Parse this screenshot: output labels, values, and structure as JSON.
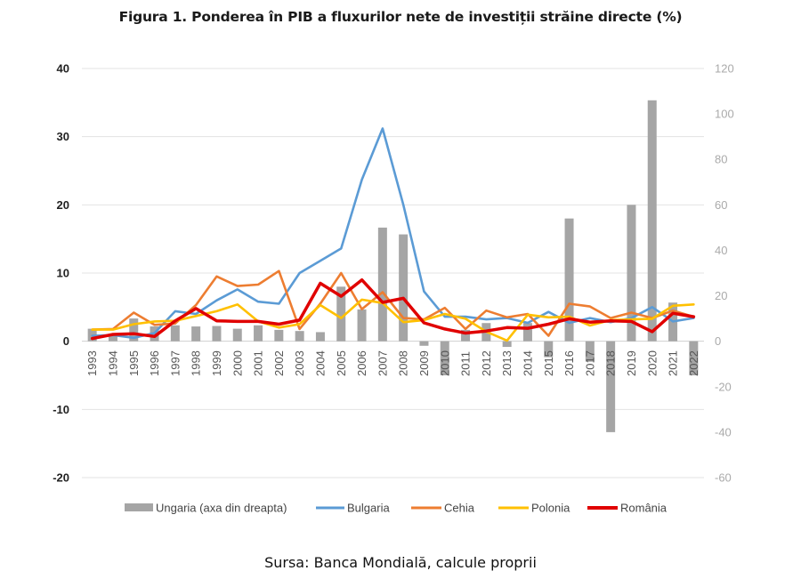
{
  "chart_data": {
    "type": "line",
    "title": "Figura 1. Ponderea în PIB a fluxurilor nete de investiții străine directe (%)",
    "source": "Sursa: Banca Mondială, calcule proprii",
    "xlabel": "",
    "ylabel": "",
    "grid": true,
    "legend_position": "bottom",
    "categories": [
      "1993",
      "1994",
      "1995",
      "1996",
      "1997",
      "1998",
      "1999",
      "2000",
      "2001",
      "2002",
      "2003",
      "2004",
      "2005",
      "2006",
      "2007",
      "2008",
      "2009",
      "2010",
      "2011",
      "2012",
      "2013",
      "2014",
      "2015",
      "2016",
      "2017",
      "2018",
      "2019",
      "2020",
      "2021",
      "2022"
    ],
    "y_left": {
      "range": [
        -20,
        40
      ],
      "ticks": [
        "40",
        "30",
        "20",
        "10",
        "0",
        "-10",
        "-20"
      ],
      "tick_values": [
        40,
        30,
        20,
        10,
        0,
        -10,
        -20
      ]
    },
    "y_right": {
      "range": [
        -60,
        120
      ],
      "ticks": [
        "120",
        "100",
        "80",
        "60",
        "40",
        "20",
        "0",
        "-20",
        "-40",
        "-60"
      ],
      "tick_values": [
        120,
        100,
        80,
        60,
        40,
        20,
        0,
        -20,
        -40,
        -60
      ]
    },
    "series": [
      {
        "name": "Ungaria (axa din dreapta)",
        "type": "bar",
        "axis": "right",
        "color": "#a5a5a5",
        "values": [
          5.5,
          2.5,
          10,
          6.5,
          7,
          6.5,
          6.7,
          5.5,
          7,
          5,
          4.5,
          4,
          24,
          14,
          50,
          47,
          -2,
          -15,
          5,
          8,
          -2.5,
          8,
          -7,
          54,
          -9,
          -40,
          60,
          106,
          17,
          -15
        ]
      },
      {
        "name": "Bulgaria",
        "type": "line",
        "axis": "left",
        "color": "#5b9bd5",
        "values": [
          0.8,
          0.9,
          0.5,
          1.2,
          4.4,
          4.0,
          6.0,
          7.6,
          5.8,
          5.5,
          10.0,
          11.8,
          13.6,
          23.7,
          31.2,
          20.0,
          7.3,
          3.6,
          3.6,
          3.2,
          3.4,
          2.7,
          4.3,
          2.7,
          3.4,
          2.8,
          3.4,
          5.0,
          2.9,
          3.4
        ]
      },
      {
        "name": "Cehia",
        "type": "line",
        "axis": "left",
        "color": "#ed7d31",
        "values": [
          1.7,
          1.8,
          4.2,
          2.4,
          2.6,
          5.3,
          9.5,
          8.1,
          8.3,
          10.3,
          1.8,
          5.5,
          10.0,
          4.7,
          7.2,
          3.4,
          3.2,
          4.9,
          1.8,
          4.5,
          3.5,
          4.0,
          0.8,
          5.5,
          5.1,
          3.4,
          4.2,
          3.4,
          4.5,
          3.6
        ]
      },
      {
        "name": "Polonia",
        "type": "line",
        "axis": "left",
        "color": "#ffc000",
        "values": [
          1.7,
          1.7,
          2.5,
          2.9,
          3.0,
          3.7,
          4.4,
          5.4,
          2.9,
          2.0,
          2.5,
          5.3,
          3.4,
          6.1,
          5.6,
          2.8,
          3.1,
          4.0,
          3.3,
          1.4,
          0.1,
          3.9,
          3.5,
          3.6,
          2.3,
          3.1,
          3.2,
          3.3,
          5.2,
          5.4
        ]
      },
      {
        "name": "România",
        "type": "line",
        "axis": "left",
        "color": "#e00000",
        "values": [
          0.4,
          1.0,
          1.1,
          0.7,
          3.0,
          4.8,
          3.0,
          2.9,
          2.9,
          2.5,
          3.1,
          8.5,
          6.6,
          9.0,
          5.7,
          6.3,
          2.7,
          1.8,
          1.2,
          1.5,
          2.0,
          1.9,
          2.5,
          3.3,
          2.8,
          3.0,
          2.9,
          1.4,
          4.1,
          3.6
        ]
      }
    ]
  }
}
